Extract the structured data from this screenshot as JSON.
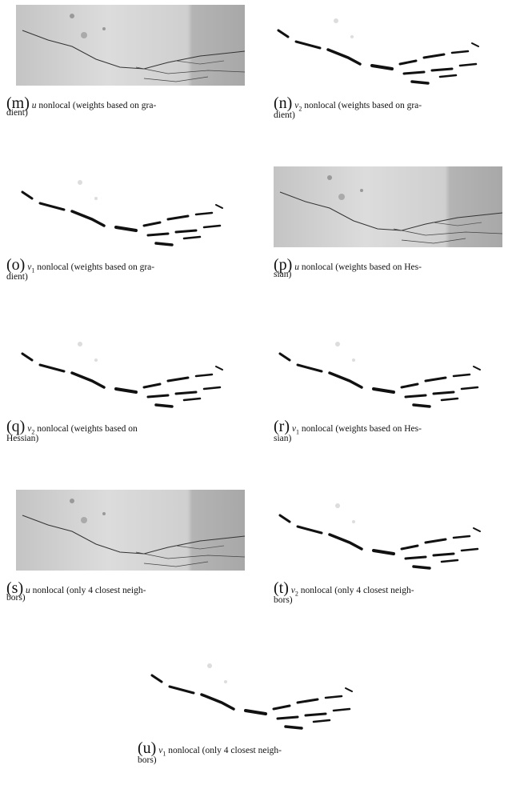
{
  "panels": [
    {
      "label": "(m)",
      "var": "u",
      "lines": [
        "nonlocal (weights based on gra-",
        "dient)"
      ]
    },
    {
      "label": "(n)",
      "var": "v",
      "sub": "2",
      "lines": [
        "nonlocal (weights based on gra-",
        "dient)"
      ]
    },
    {
      "label": "(o)",
      "var": "v",
      "sub": "1",
      "lines": [
        "nonlocal (weights based on gra-",
        "dient)"
      ]
    },
    {
      "label": "(p)",
      "var": "u",
      "lines": [
        "nonlocal (weights based on Hes-",
        "sian)"
      ]
    },
    {
      "label": "(q)",
      "var": "v",
      "sub": "2",
      "lines": [
        "nonlocal (weights based on",
        "Hessian)"
      ]
    },
    {
      "label": "(r)",
      "var": "v",
      "sub": "1",
      "lines": [
        "nonlocal (weights based on Hes-",
        "sian)"
      ]
    },
    {
      "label": "(s)",
      "var": "u",
      "lines": [
        "nonlocal (only 4 closest neigh-",
        "bors)"
      ]
    },
    {
      "label": "(t)",
      "var": "v",
      "sub": "2",
      "lines": [
        "nonlocal (only 4 closest neigh-",
        "bors)"
      ]
    },
    {
      "label": "(u)",
      "var": "v",
      "sub": "1",
      "lines": [
        "nonlocal (only 4 closest neigh-",
        "bors)"
      ]
    }
  ]
}
